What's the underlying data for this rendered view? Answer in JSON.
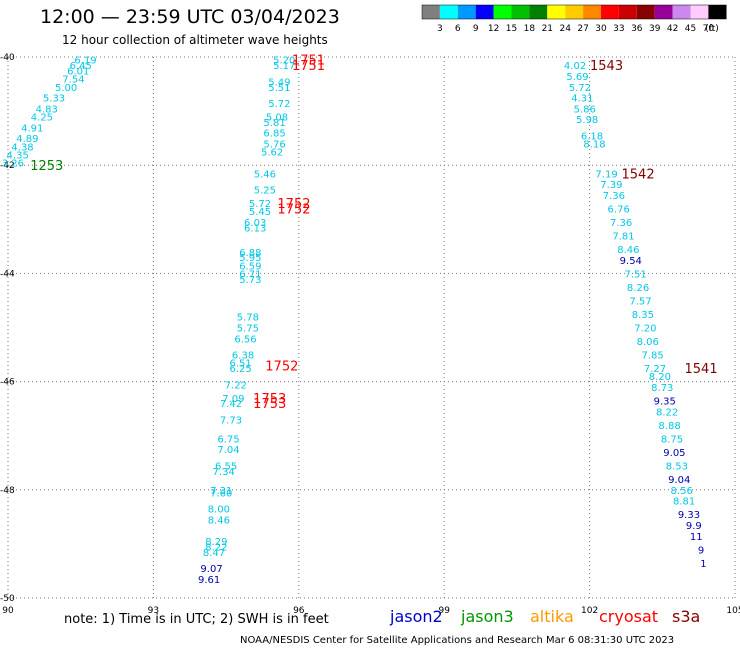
{
  "header": {
    "title": "12:00 — 23:59 UTC 03/04/2023",
    "subtitle": "12 hour collection of altimeter wave heights"
  },
  "colorbar": {
    "unit_label": "(ft)",
    "bins": [
      {
        "label": "3",
        "color": "#7f7f7f"
      },
      {
        "label": "6",
        "color": "#00ffff"
      },
      {
        "label": "9",
        "color": "#0099ff"
      },
      {
        "label": "12",
        "color": "#0000ff"
      },
      {
        "label": "15",
        "color": "#00ff00"
      },
      {
        "label": "18",
        "color": "#00c000"
      },
      {
        "label": "21",
        "color": "#008000"
      },
      {
        "label": "24",
        "color": "#ffff00"
      },
      {
        "label": "27",
        "color": "#ffcc00"
      },
      {
        "label": "30",
        "color": "#ff8800"
      },
      {
        "label": "33",
        "color": "#ff0000"
      },
      {
        "label": "36",
        "color": "#cc0000"
      },
      {
        "label": "39",
        "color": "#880000"
      },
      {
        "label": "42",
        "color": "#990099"
      },
      {
        "label": "45",
        "color": "#cc88ee"
      },
      {
        "label": "70",
        "color": "#ffccff"
      },
      {
        "label": "",
        "color": "#000000"
      }
    ]
  },
  "footer": {
    "note": "note:  1) Time is in UTC;  2) SWH is in feet",
    "satellites": [
      {
        "name": "jason2",
        "color": "#0000cc"
      },
      {
        "name": "jason3",
        "color": "#009900"
      },
      {
        "name": "altika",
        "color": "#ff9900"
      },
      {
        "name": "cryosat",
        "color": "#ff0000"
      },
      {
        "name": "s3a",
        "color": "#880000"
      }
    ],
    "credit": "NOAA/NESDIS Center for Satellite Applications and Research     Mar  6 08:31:30 UTC 2023"
  },
  "chart_data": {
    "type": "scatter",
    "xlim": [
      90,
      105
    ],
    "ylim": [
      -50,
      -40
    ],
    "x_ticks": [
      "90",
      "93",
      "96",
      "99",
      "102",
      "105"
    ],
    "y_ticks": [
      "-40",
      "-42",
      "-44",
      "-46",
      "-48",
      "-50"
    ],
    "grid": true,
    "colors": {
      "cyan": "#00c8e6",
      "navy": "#0000aa",
      "red": "#ff0000",
      "green": "#008000",
      "maroon": "#800000"
    },
    "points": [
      {
        "x": 91.6,
        "y": -40.05,
        "t": "6.19",
        "c": "cyan"
      },
      {
        "x": 91.5,
        "y": -40.15,
        "t": "6.45",
        "c": "cyan"
      },
      {
        "x": 91.45,
        "y": -40.25,
        "t": "6.01",
        "c": "cyan"
      },
      {
        "x": 91.35,
        "y": -40.4,
        "t": "7.54",
        "c": "cyan"
      },
      {
        "x": 91.2,
        "y": -40.55,
        "t": "5.00",
        "c": "cyan"
      },
      {
        "x": 90.95,
        "y": -40.75,
        "t": "5.33",
        "c": "cyan"
      },
      {
        "x": 90.8,
        "y": -40.95,
        "t": "4.83",
        "c": "cyan"
      },
      {
        "x": 90.7,
        "y": -41.1,
        "t": "4.25",
        "c": "cyan"
      },
      {
        "x": 90.5,
        "y": -41.3,
        "t": "4.91",
        "c": "cyan"
      },
      {
        "x": 90.4,
        "y": -41.5,
        "t": "4.89",
        "c": "cyan"
      },
      {
        "x": 90.3,
        "y": -41.65,
        "t": "4.38",
        "c": "cyan"
      },
      {
        "x": 90.2,
        "y": -41.8,
        "t": "4.35",
        "c": "cyan"
      },
      {
        "x": 90.1,
        "y": -41.95,
        "t": "3.26",
        "c": "cyan"
      },
      {
        "x": 95.7,
        "y": -40.05,
        "t": "5.20",
        "c": "cyan"
      },
      {
        "x": 95.7,
        "y": -40.15,
        "t": "5.17",
        "c": "cyan"
      },
      {
        "x": 95.6,
        "y": -40.45,
        "t": "5.49",
        "c": "cyan"
      },
      {
        "x": 95.6,
        "y": -40.55,
        "t": "5.51",
        "c": "cyan"
      },
      {
        "x": 95.6,
        "y": -40.85,
        "t": "5.72",
        "c": "cyan"
      },
      {
        "x": 95.55,
        "y": -41.1,
        "t": "5.08",
        "c": "cyan"
      },
      {
        "x": 95.5,
        "y": -41.2,
        "t": "5.81",
        "c": "cyan"
      },
      {
        "x": 95.5,
        "y": -41.4,
        "t": "6.85",
        "c": "cyan"
      },
      {
        "x": 95.5,
        "y": -41.6,
        "t": "5.76",
        "c": "cyan"
      },
      {
        "x": 95.45,
        "y": -41.75,
        "t": "5.62",
        "c": "cyan"
      },
      {
        "x": 95.3,
        "y": -42.15,
        "t": "5.46",
        "c": "cyan"
      },
      {
        "x": 95.3,
        "y": -42.45,
        "t": "5.25",
        "c": "cyan"
      },
      {
        "x": 95.2,
        "y": -42.7,
        "t": "5.72",
        "c": "cyan"
      },
      {
        "x": 95.2,
        "y": -42.85,
        "t": "5.45",
        "c": "cyan"
      },
      {
        "x": 95.1,
        "y": -43.05,
        "t": "6.03",
        "c": "cyan"
      },
      {
        "x": 95.1,
        "y": -43.15,
        "t": "6.13",
        "c": "cyan"
      },
      {
        "x": 95.0,
        "y": -43.6,
        "t": "6.88",
        "c": "cyan"
      },
      {
        "x": 95.0,
        "y": -43.7,
        "t": "5.95",
        "c": "cyan"
      },
      {
        "x": 95.0,
        "y": -43.85,
        "t": "6.59",
        "c": "cyan"
      },
      {
        "x": 95.0,
        "y": -44.0,
        "t": "6.71",
        "c": "cyan"
      },
      {
        "x": 95.0,
        "y": -44.1,
        "t": "5.73",
        "c": "cyan"
      },
      {
        "x": 94.95,
        "y": -44.8,
        "t": "5.78",
        "c": "cyan"
      },
      {
        "x": 94.95,
        "y": -45.0,
        "t": "5.75",
        "c": "cyan"
      },
      {
        "x": 94.9,
        "y": -45.2,
        "t": "6.56",
        "c": "cyan"
      },
      {
        "x": 94.85,
        "y": -45.5,
        "t": "6.38",
        "c": "cyan"
      },
      {
        "x": 94.8,
        "y": -45.65,
        "t": "6.51",
        "c": "cyan"
      },
      {
        "x": 94.8,
        "y": -45.75,
        "t": "6.25",
        "c": "cyan"
      },
      {
        "x": 94.7,
        "y": -46.05,
        "t": "7.22",
        "c": "cyan"
      },
      {
        "x": 94.65,
        "y": -46.3,
        "t": "7.09",
        "c": "cyan"
      },
      {
        "x": 94.6,
        "y": -46.4,
        "t": "7.42",
        "c": "cyan"
      },
      {
        "x": 94.6,
        "y": -46.7,
        "t": "7.73",
        "c": "cyan"
      },
      {
        "x": 94.55,
        "y": -47.05,
        "t": "6.75",
        "c": "cyan"
      },
      {
        "x": 94.55,
        "y": -47.25,
        "t": "7.04",
        "c": "cyan"
      },
      {
        "x": 94.5,
        "y": -47.55,
        "t": "6.55",
        "c": "cyan"
      },
      {
        "x": 94.45,
        "y": -47.65,
        "t": "7.34",
        "c": "cyan"
      },
      {
        "x": 94.4,
        "y": -48.0,
        "t": "7.31",
        "c": "cyan"
      },
      {
        "x": 94.4,
        "y": -48.05,
        "t": "7.60",
        "c": "cyan"
      },
      {
        "x": 94.35,
        "y": -48.35,
        "t": "8.00",
        "c": "cyan"
      },
      {
        "x": 94.35,
        "y": -48.55,
        "t": "8.46",
        "c": "cyan"
      },
      {
        "x": 94.3,
        "y": -48.95,
        "t": "8.29",
        "c": "cyan"
      },
      {
        "x": 94.3,
        "y": -49.05,
        "t": "8.22",
        "c": "cyan"
      },
      {
        "x": 94.25,
        "y": -49.15,
        "t": "8.47",
        "c": "cyan"
      },
      {
        "x": 94.2,
        "y": -49.45,
        "t": "9.07",
        "c": "navy"
      },
      {
        "x": 94.15,
        "y": -49.65,
        "t": "9.61",
        "c": "navy"
      },
      {
        "x": 101.7,
        "y": -40.15,
        "t": "4.02",
        "c": "cyan"
      },
      {
        "x": 101.75,
        "y": -40.35,
        "t": "5.69",
        "c": "cyan"
      },
      {
        "x": 101.8,
        "y": -40.55,
        "t": "5.72",
        "c": "cyan"
      },
      {
        "x": 101.85,
        "y": -40.75,
        "t": "4.31",
        "c": "cyan"
      },
      {
        "x": 101.9,
        "y": -40.95,
        "t": "5.86",
        "c": "cyan"
      },
      {
        "x": 101.95,
        "y": -41.15,
        "t": "5.98",
        "c": "cyan"
      },
      {
        "x": 102.05,
        "y": -41.45,
        "t": "6.18",
        "c": "cyan"
      },
      {
        "x": 102.1,
        "y": -41.6,
        "t": "8.18",
        "c": "cyan"
      },
      {
        "x": 102.35,
        "y": -42.15,
        "t": "7.19",
        "c": "cyan"
      },
      {
        "x": 102.45,
        "y": -42.35,
        "t": "7.39",
        "c": "cyan"
      },
      {
        "x": 102.5,
        "y": -42.55,
        "t": "7.36",
        "c": "cyan"
      },
      {
        "x": 102.6,
        "y": -42.8,
        "t": "6.76",
        "c": "cyan"
      },
      {
        "x": 102.65,
        "y": -43.05,
        "t": "7.36",
        "c": "cyan"
      },
      {
        "x": 102.7,
        "y": -43.3,
        "t": "7.81",
        "c": "cyan"
      },
      {
        "x": 102.8,
        "y": -43.55,
        "t": "8.46",
        "c": "cyan"
      },
      {
        "x": 102.85,
        "y": -43.75,
        "t": "9.54",
        "c": "navy"
      },
      {
        "x": 102.95,
        "y": -44.0,
        "t": "7.51",
        "c": "cyan"
      },
      {
        "x": 103.0,
        "y": -44.25,
        "t": "8.26",
        "c": "cyan"
      },
      {
        "x": 103.05,
        "y": -44.5,
        "t": "7.57",
        "c": "cyan"
      },
      {
        "x": 103.1,
        "y": -44.75,
        "t": "8.35",
        "c": "cyan"
      },
      {
        "x": 103.15,
        "y": -45.0,
        "t": "7.20",
        "c": "cyan"
      },
      {
        "x": 103.2,
        "y": -45.25,
        "t": "8.06",
        "c": "cyan"
      },
      {
        "x": 103.3,
        "y": -45.5,
        "t": "7.85",
        "c": "cyan"
      },
      {
        "x": 103.35,
        "y": -45.75,
        "t": "7.27",
        "c": "cyan"
      },
      {
        "x": 103.45,
        "y": -45.9,
        "t": "8.20",
        "c": "cyan"
      },
      {
        "x": 103.5,
        "y": -46.1,
        "t": "8.73",
        "c": "cyan"
      },
      {
        "x": 103.55,
        "y": -46.35,
        "t": "9.35",
        "c": "navy"
      },
      {
        "x": 103.6,
        "y": -46.55,
        "t": "8.22",
        "c": "cyan"
      },
      {
        "x": 103.65,
        "y": -46.8,
        "t": "8.88",
        "c": "cyan"
      },
      {
        "x": 103.7,
        "y": -47.05,
        "t": "8.75",
        "c": "cyan"
      },
      {
        "x": 103.75,
        "y": -47.3,
        "t": "9.05",
        "c": "navy"
      },
      {
        "x": 103.8,
        "y": -47.55,
        "t": "8.53",
        "c": "cyan"
      },
      {
        "x": 103.85,
        "y": -47.8,
        "t": "9.04",
        "c": "navy"
      },
      {
        "x": 103.9,
        "y": -48.0,
        "t": "8.56",
        "c": "cyan"
      },
      {
        "x": 103.95,
        "y": -48.2,
        "t": "8.81",
        "c": "cyan"
      },
      {
        "x": 104.05,
        "y": -48.45,
        "t": "9.33",
        "c": "navy"
      },
      {
        "x": 104.15,
        "y": -48.65,
        "t": "9.9",
        "c": "navy"
      },
      {
        "x": 104.2,
        "y": -48.85,
        "t": "11",
        "c": "navy"
      },
      {
        "x": 104.3,
        "y": -49.1,
        "t": "9",
        "c": "navy"
      },
      {
        "x": 104.35,
        "y": -49.35,
        "t": "1",
        "c": "navy"
      }
    ],
    "time_labels": [
      {
        "x": 90.8,
        "y": -42.0,
        "t": "1253",
        "c": "green"
      },
      {
        "x": 96.2,
        "y": -40.05,
        "t": "1751",
        "c": "red"
      },
      {
        "x": 96.2,
        "y": -40.15,
        "t": "1751",
        "c": "red"
      },
      {
        "x": 95.9,
        "y": -42.7,
        "t": "1752",
        "c": "red"
      },
      {
        "x": 95.9,
        "y": -42.8,
        "t": "1752",
        "c": "red"
      },
      {
        "x": 95.65,
        "y": -45.7,
        "t": "1752",
        "c": "red"
      },
      {
        "x": 95.4,
        "y": -46.3,
        "t": "1753",
        "c": "red"
      },
      {
        "x": 95.4,
        "y": -46.4,
        "t": "1753",
        "c": "red"
      },
      {
        "x": 102.35,
        "y": -40.15,
        "t": "1543",
        "c": "maroon"
      },
      {
        "x": 103.0,
        "y": -42.15,
        "t": "1542",
        "c": "maroon"
      },
      {
        "x": 104.3,
        "y": -45.75,
        "t": "1541",
        "c": "maroon"
      }
    ]
  }
}
